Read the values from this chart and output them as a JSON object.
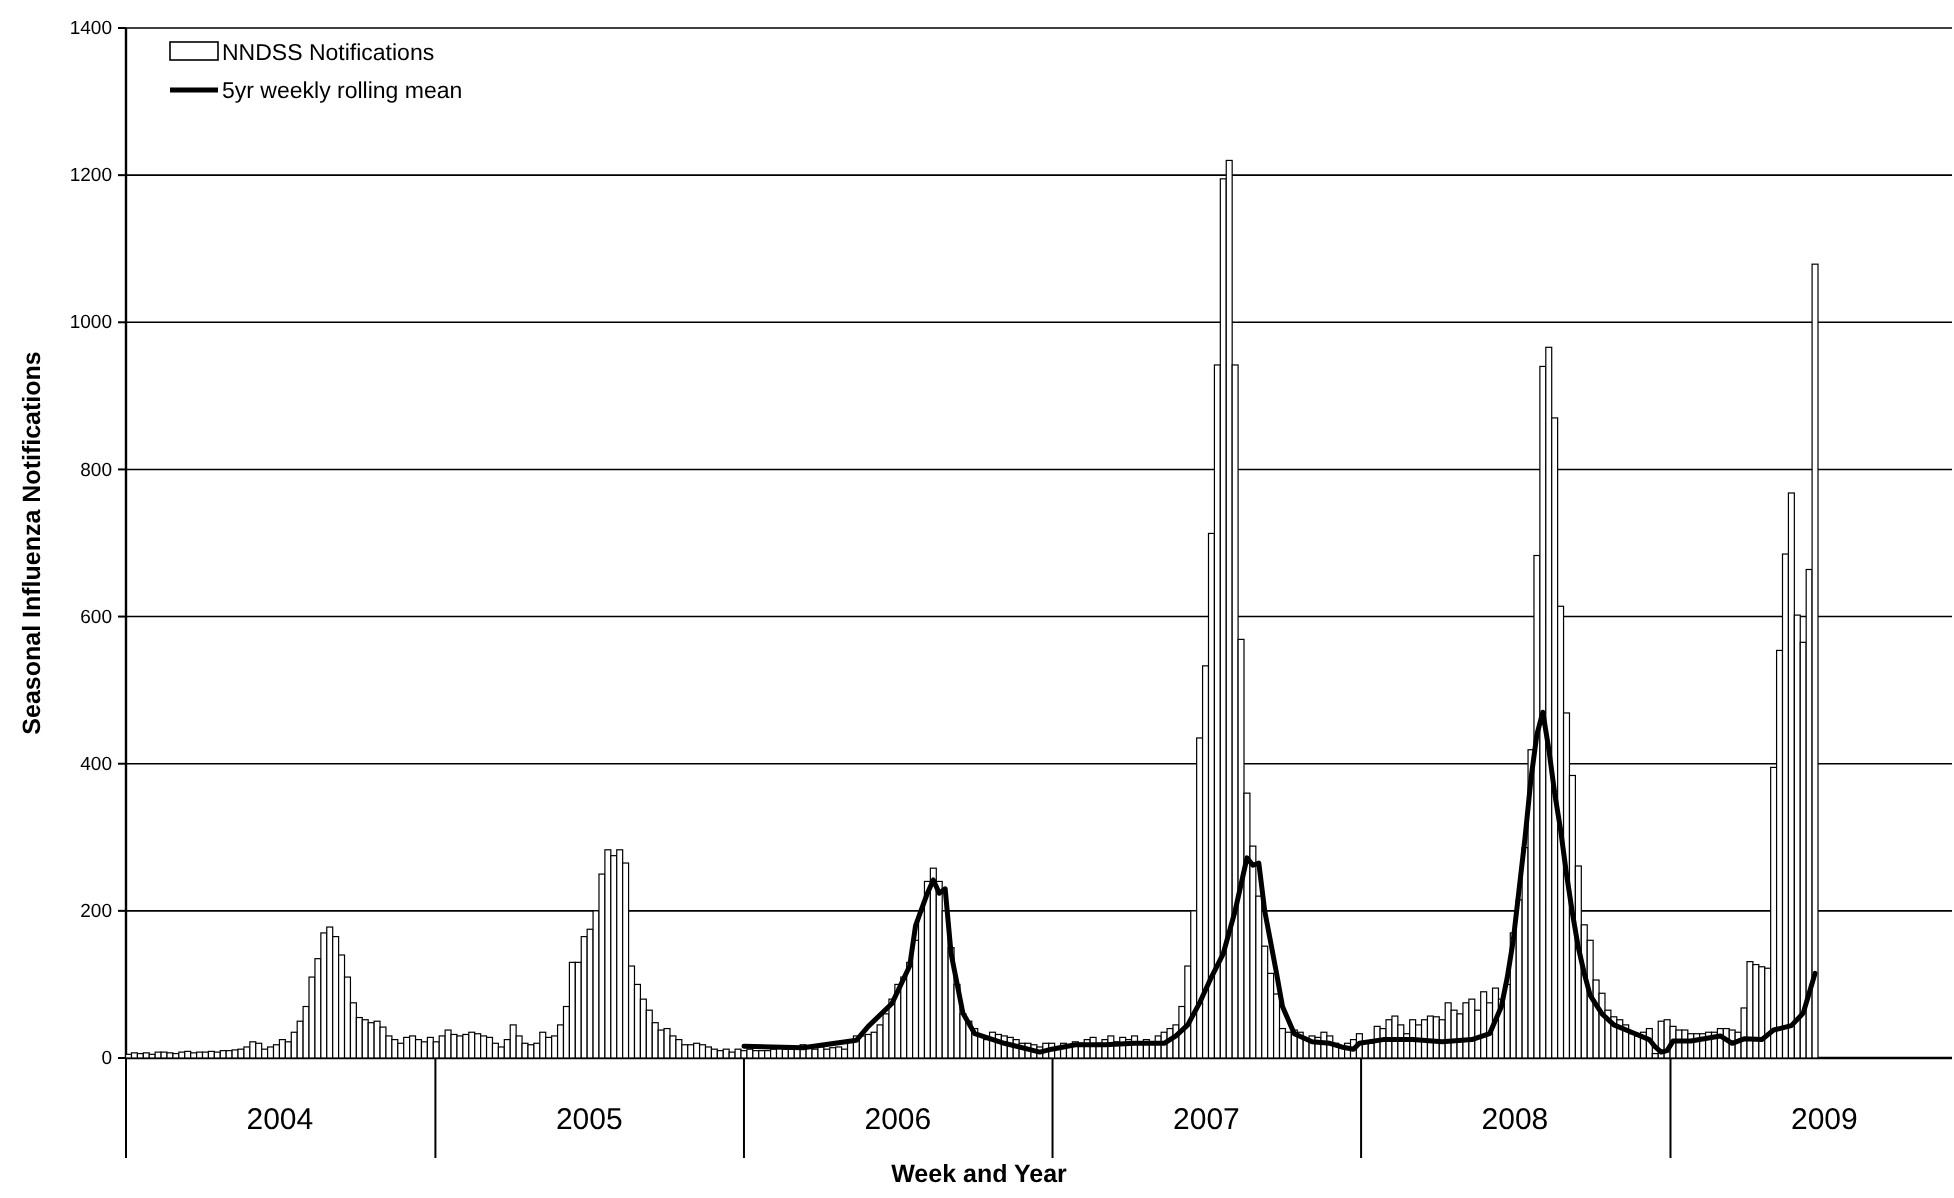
{
  "chart_data": {
    "type": "bar",
    "xlabel": "Week and Year",
    "ylabel": "Seasonal Influenza Notifications",
    "x": [
      "2004-01-04",
      "2004-01-11",
      "2004-01-18",
      "2004-01-25",
      "2004-02-01",
      "2004-02-08",
      "2004-02-15",
      "2004-02-22",
      "2004-02-29",
      "2004-03-07",
      "2004-03-14",
      "2004-03-21",
      "2004-03-28",
      "2004-04-04",
      "2004-04-11",
      "2004-04-18",
      "2004-04-25",
      "2004-05-02",
      "2004-05-09",
      "2004-05-16",
      "2004-05-23",
      "2004-05-30",
      "2004-06-06",
      "2004-06-13",
      "2004-06-20",
      "2004-06-27",
      "2004-07-04",
      "2004-07-11",
      "2004-07-18",
      "2004-07-25",
      "2004-08-01",
      "2004-08-08",
      "2004-08-15",
      "2004-08-22",
      "2004-08-29",
      "2004-09-05",
      "2004-09-12",
      "2004-09-19",
      "2004-09-26",
      "2004-10-03",
      "2004-10-10",
      "2004-10-17",
      "2004-10-24",
      "2004-10-31",
      "2004-11-07",
      "2004-11-14",
      "2004-11-21",
      "2004-11-28",
      "2004-12-05",
      "2004-12-12",
      "2004-12-19",
      "2004-12-26",
      "2005-01-02",
      "2005-01-09",
      "2005-01-16",
      "2005-01-23",
      "2005-01-30",
      "2005-02-06",
      "2005-02-13",
      "2005-02-20",
      "2005-02-27",
      "2005-03-06",
      "2005-03-13",
      "2005-03-20",
      "2005-03-27",
      "2005-04-03",
      "2005-04-10",
      "2005-04-17",
      "2005-04-24",
      "2005-05-01",
      "2005-05-08",
      "2005-05-15",
      "2005-05-22",
      "2005-05-29",
      "2005-06-05",
      "2005-06-12",
      "2005-06-19",
      "2005-06-26",
      "2005-07-03",
      "2005-07-10",
      "2005-07-17",
      "2005-07-24",
      "2005-07-31",
      "2005-08-07",
      "2005-08-14",
      "2005-08-21",
      "2005-08-28",
      "2005-09-04",
      "2005-09-11",
      "2005-09-18",
      "2005-09-25",
      "2005-10-02",
      "2005-10-09",
      "2005-10-16",
      "2005-10-23",
      "2005-10-30",
      "2005-11-06",
      "2005-11-13",
      "2005-11-20",
      "2005-11-27",
      "2005-12-04",
      "2005-12-11",
      "2005-12-18",
      "2005-12-25",
      "2006-01-01",
      "2006-01-08",
      "2006-01-15",
      "2006-01-22",
      "2006-01-29",
      "2006-02-05",
      "2006-02-12",
      "2006-02-19",
      "2006-02-26",
      "2006-03-05",
      "2006-03-12",
      "2006-03-19",
      "2006-03-26",
      "2006-04-02",
      "2006-04-09",
      "2006-04-16",
      "2006-04-23",
      "2006-04-30",
      "2006-05-07",
      "2006-05-14",
      "2006-05-21",
      "2006-05-28",
      "2006-06-04",
      "2006-06-11",
      "2006-06-18",
      "2006-06-25",
      "2006-07-02",
      "2006-07-09",
      "2006-07-16",
      "2006-07-23",
      "2006-07-30",
      "2006-08-06",
      "2006-08-13",
      "2006-08-20",
      "2006-08-27",
      "2006-09-03",
      "2006-09-10",
      "2006-09-17",
      "2006-09-24",
      "2006-10-01",
      "2006-10-08",
      "2006-10-15",
      "2006-10-22",
      "2006-10-29",
      "2006-11-05",
      "2006-11-12",
      "2006-11-19",
      "2006-11-26",
      "2006-12-03",
      "2006-12-10",
      "2006-12-17",
      "2006-12-24",
      "2006-12-31",
      "2007-01-07",
      "2007-01-14",
      "2007-01-21",
      "2007-01-28",
      "2007-02-04",
      "2007-02-11",
      "2007-02-18",
      "2007-02-25",
      "2007-03-04",
      "2007-03-11",
      "2007-03-18",
      "2007-03-25",
      "2007-04-01",
      "2007-04-08",
      "2007-04-15",
      "2007-04-22",
      "2007-04-29",
      "2007-05-06",
      "2007-05-13",
      "2007-05-20",
      "2007-05-27",
      "2007-06-03",
      "2007-06-10",
      "2007-06-17",
      "2007-06-24",
      "2007-07-01",
      "2007-07-08",
      "2007-07-15",
      "2007-07-22",
      "2007-07-29",
      "2007-08-05",
      "2007-08-12",
      "2007-08-19",
      "2007-08-26",
      "2007-09-02",
      "2007-09-09",
      "2007-09-16",
      "2007-09-23",
      "2007-09-30",
      "2007-10-07",
      "2007-10-14",
      "2007-10-21",
      "2007-10-28",
      "2007-11-04",
      "2007-11-11",
      "2007-11-18",
      "2007-11-25",
      "2007-12-02",
      "2007-12-09",
      "2007-12-16",
      "2007-12-23",
      "2007-12-30",
      "2008-01-06",
      "2008-01-13",
      "2008-01-20",
      "2008-01-27",
      "2008-02-03",
      "2008-02-10",
      "2008-02-17",
      "2008-02-24",
      "2008-03-02",
      "2008-03-09",
      "2008-03-16",
      "2008-03-23",
      "2008-03-30",
      "2008-04-06",
      "2008-04-13",
      "2008-04-20",
      "2008-04-27",
      "2008-05-04",
      "2008-05-11",
      "2008-05-18",
      "2008-05-25",
      "2008-06-01",
      "2008-06-08",
      "2008-06-15",
      "2008-06-22",
      "2008-06-29",
      "2008-07-06",
      "2008-07-13",
      "2008-07-20",
      "2008-07-27",
      "2008-08-03",
      "2008-08-10",
      "2008-08-17",
      "2008-08-24",
      "2008-08-31",
      "2008-09-07",
      "2008-09-14",
      "2008-09-21",
      "2008-09-28",
      "2008-10-05",
      "2008-10-12",
      "2008-10-19",
      "2008-10-26",
      "2008-11-02",
      "2008-11-09",
      "2008-11-16",
      "2008-11-23",
      "2008-11-30",
      "2008-12-07",
      "2008-12-14",
      "2008-12-21",
      "2008-12-28",
      "2009-01-04",
      "2009-01-11",
      "2009-01-18",
      "2009-01-25",
      "2009-02-01",
      "2009-02-08",
      "2009-02-15",
      "2009-02-22",
      "2009-03-01",
      "2009-03-08",
      "2009-03-15",
      "2009-03-22",
      "2009-03-29",
      "2009-04-05",
      "2009-04-12",
      "2009-04-19",
      "2009-04-26",
      "2009-05-03",
      "2009-05-10",
      "2009-05-17",
      "2009-05-24",
      "2009-05-31",
      "2009-06-07",
      "2009-06-14",
      "2009-06-21"
    ],
    "series": [
      {
        "name": "NNDSS Notifications",
        "color": "#ffffff",
        "values": [
          5,
          7,
          6,
          7,
          5,
          8,
          8,
          7,
          6,
          8,
          9,
          7,
          8,
          8,
          9,
          8,
          10,
          10,
          11,
          12,
          15,
          22,
          20,
          12,
          15,
          18,
          25,
          22,
          35,
          50,
          70,
          110,
          135,
          170,
          178,
          165,
          140,
          110,
          75,
          55,
          52,
          48,
          50,
          42,
          30,
          25,
          20,
          28,
          30,
          25,
          22,
          28,
          22,
          30,
          38,
          32,
          30,
          32,
          35,
          33,
          30,
          28,
          20,
          15,
          25,
          45,
          30,
          20,
          18,
          20,
          35,
          28,
          30,
          45,
          70,
          130,
          130,
          165,
          175,
          200,
          250,
          283,
          275,
          283,
          265,
          125,
          100,
          80,
          65,
          48,
          38,
          40,
          30,
          25,
          18,
          18,
          20,
          18,
          15,
          12,
          10,
          12,
          8,
          12,
          10,
          12,
          10,
          10,
          10,
          12,
          15,
          12,
          12,
          15,
          18,
          15,
          12,
          15,
          12,
          14,
          15,
          12,
          25,
          30,
          30,
          32,
          35,
          45,
          60,
          80,
          100,
          110,
          130,
          160,
          200,
          240,
          258,
          240,
          200,
          150,
          100,
          60,
          50,
          40,
          30,
          25,
          35,
          32,
          30,
          28,
          25,
          20,
          20,
          18,
          15,
          20,
          20,
          15,
          20,
          18,
          22,
          20,
          25,
          28,
          20,
          25,
          30,
          22,
          28,
          25,
          30,
          20,
          25,
          22,
          30,
          35,
          40,
          45,
          70,
          125,
          200,
          435,
          533,
          713,
          942,
          1195,
          1220,
          942,
          569,
          360,
          288,
          220,
          152,
          115,
          87,
          40,
          35,
          38,
          35,
          25,
          30,
          28,
          35,
          30,
          20,
          15,
          20,
          25,
          33,
          20,
          20,
          43,
          40,
          52,
          57,
          45,
          33,
          52,
          45,
          52,
          57,
          56,
          52,
          75,
          65,
          60,
          75,
          80,
          65,
          90,
          75,
          95,
          80,
          100,
          170,
          215,
          286,
          419,
          683,
          940,
          966,
          870,
          614,
          469,
          384,
          261,
          181,
          160,
          106,
          88,
          65,
          56,
          52,
          45,
          33,
          30,
          35,
          40,
          6,
          50,
          52,
          43,
          38,
          38,
          33,
          33,
          33,
          35,
          35,
          40,
          40,
          38,
          35,
          68,
          131,
          127,
          124,
          122,
          395,
          554,
          685,
          768,
          602,
          565,
          664,
          1079
        ]
      },
      {
        "name": "5yr weekly rolling mean",
        "type": "line",
        "color": "#000000",
        "x": [
          "2006-01-01",
          "2006-03-12",
          "2006-05-14",
          "2006-05-28",
          "2006-06-25",
          "2006-07-16",
          "2006-07-23",
          "2006-08-06",
          "2006-08-13",
          "2006-08-20",
          "2006-08-27",
          "2006-09-03",
          "2006-09-17",
          "2006-10-01",
          "2006-11-05",
          "2006-12-17",
          "2006-12-24",
          "2006-12-31",
          "2007-01-28",
          "2007-03-04",
          "2007-04-08",
          "2007-05-13",
          "2007-05-27",
          "2007-06-10",
          "2007-06-24",
          "2007-07-08",
          "2007-07-22",
          "2007-08-05",
          "2007-08-19",
          "2007-08-26",
          "2007-09-02",
          "2007-09-09",
          "2007-09-23",
          "2007-09-30",
          "2007-10-14",
          "2007-11-04",
          "2007-11-25",
          "2007-12-09",
          "2007-12-23",
          "2007-12-30",
          "2008-01-27",
          "2008-03-02",
          "2008-04-06",
          "2008-05-11",
          "2008-06-01",
          "2008-06-15",
          "2008-06-22",
          "2008-06-29",
          "2008-07-06",
          "2008-07-13",
          "2008-07-20",
          "2008-07-27",
          "2008-08-03",
          "2008-08-10",
          "2008-08-17",
          "2008-08-24",
          "2008-08-31",
          "2008-09-07",
          "2008-09-14",
          "2008-09-21",
          "2008-09-28",
          "2008-10-12",
          "2008-10-26",
          "2008-11-16",
          "2008-12-07",
          "2008-12-14",
          "2008-12-21",
          "2008-12-28",
          "2009-01-04",
          "2009-01-25",
          "2009-03-01",
          "2009-03-15",
          "2009-03-29",
          "2009-04-19",
          "2009-05-03",
          "2009-05-24",
          "2009-06-07",
          "2009-06-14",
          "2009-06-21"
        ],
        "values": [
          16,
          14,
          24,
          43,
          74,
          125,
          180,
          224,
          242,
          224,
          230,
          142,
          61,
          33,
          20,
          8,
          10,
          12,
          18,
          18,
          20,
          20,
          30,
          45,
          75,
          110,
          142,
          200,
          272,
          262,
          265,
          200,
          115,
          70,
          33,
          22,
          20,
          15,
          12,
          20,
          25,
          25,
          22,
          25,
          33,
          70,
          110,
          160,
          230,
          300,
          380,
          440,
          470,
          420,
          360,
          310,
          250,
          197,
          150,
          115,
          85,
          60,
          45,
          35,
          25,
          15,
          8,
          10,
          23,
          23,
          30,
          20,
          26,
          25,
          38,
          44,
          61,
          88,
          115
        ]
      }
    ],
    "xlim": [
      "2004-01-01",
      "2009-11-30"
    ],
    "xticks": [
      {
        "value": "2004",
        "label": null
      },
      {
        "value": "2004-07-01",
        "label": "2004"
      },
      {
        "value": "2005",
        "label": null
      },
      {
        "value": "2005-07-02",
        "label": "2005"
      },
      {
        "value": "2006",
        "label": null
      },
      {
        "value": "2006-07-02",
        "label": "2006"
      },
      {
        "value": "2007",
        "label": null
      },
      {
        "value": "2007-07-02",
        "label": "2007"
      },
      {
        "value": "2008",
        "label": null
      },
      {
        "value": "2008-07-01",
        "label": "2008"
      },
      {
        "value": "2009",
        "label": null
      },
      {
        "value": "2009-07-02",
        "label": "2009"
      }
    ],
    "ylim": [
      0,
      1400
    ],
    "yticks": [
      0,
      200,
      400,
      600,
      800,
      1000,
      1200,
      1400
    ],
    "grid": "y",
    "legend": "top left",
    "marker": "none",
    "line_style": "solid"
  }
}
